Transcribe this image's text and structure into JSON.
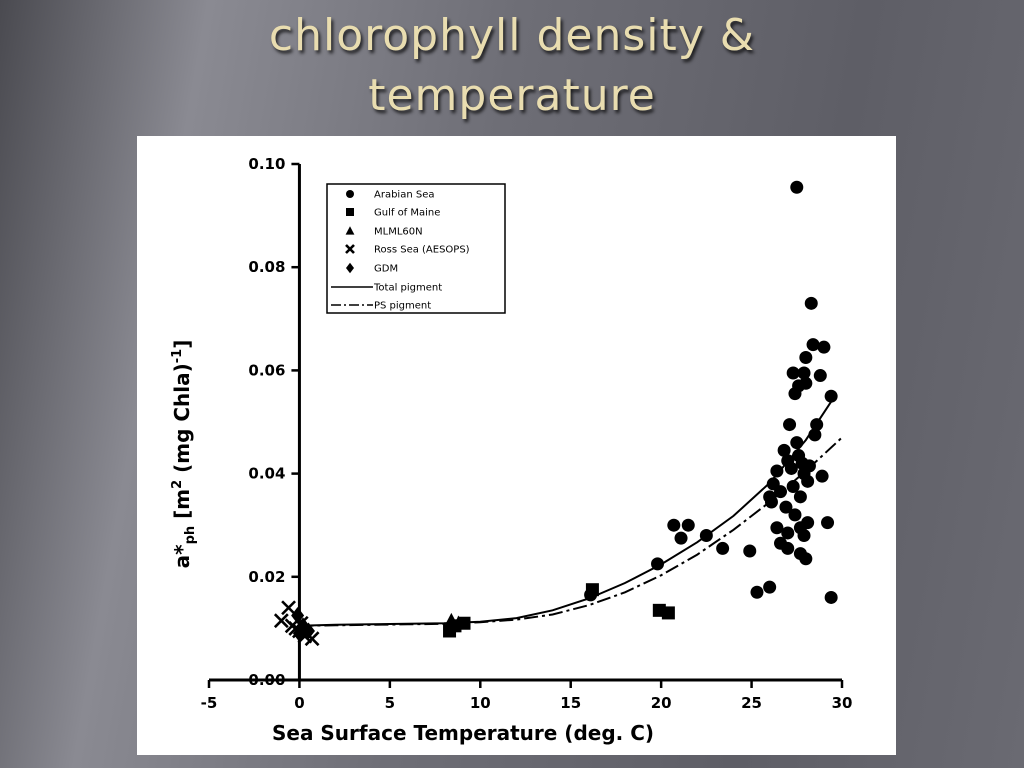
{
  "slide": {
    "title_line1": "chlorophyll density &",
    "title_line2": "temperature"
  },
  "chart_data": {
    "type": "scatter",
    "title": "",
    "xlabel": "Sea Surface Temperature (deg. C)",
    "ylabel": "a*ph [m2 (mg Chla)-1]",
    "ylabel_parts": {
      "a": "a*",
      "ph": "ph",
      "b": " [m",
      "sup2": "2",
      "c": " (mg Chla)",
      "supm1": "-1",
      "d": "]"
    },
    "xlim": [
      -5,
      30
    ],
    "ylim": [
      0.0,
      0.1
    ],
    "xticks": [
      -5,
      0,
      5,
      10,
      15,
      20,
      25,
      30
    ],
    "xtick_labels": [
      "-5",
      "0",
      "5",
      "10",
      "15",
      "20",
      "25",
      "30"
    ],
    "yticks": [
      0.0,
      0.02,
      0.04,
      0.06,
      0.08,
      0.1
    ],
    "ytick_labels": [
      "0.00",
      "0.02",
      "0.04",
      "0.06",
      "0.08",
      "0.10"
    ],
    "grid": false,
    "legend_position": "top-left",
    "series": [
      {
        "name": "Arabian Sea",
        "marker": "circle",
        "points": [
          [
            27.5,
            0.0955
          ],
          [
            28.3,
            0.073
          ],
          [
            28.4,
            0.065
          ],
          [
            28.0,
            0.0625
          ],
          [
            29.0,
            0.0645
          ],
          [
            27.3,
            0.0595
          ],
          [
            27.9,
            0.0595
          ],
          [
            28.8,
            0.059
          ],
          [
            27.6,
            0.057
          ],
          [
            28.0,
            0.0575
          ],
          [
            27.4,
            0.0555
          ],
          [
            29.4,
            0.055
          ],
          [
            28.6,
            0.0495
          ],
          [
            27.1,
            0.0495
          ],
          [
            28.5,
            0.0475
          ],
          [
            27.5,
            0.046
          ],
          [
            26.8,
            0.0445
          ],
          [
            27.6,
            0.0435
          ],
          [
            27.0,
            0.0425
          ],
          [
            27.8,
            0.042
          ],
          [
            28.2,
            0.0415
          ],
          [
            27.2,
            0.041
          ],
          [
            26.4,
            0.0405
          ],
          [
            27.9,
            0.04
          ],
          [
            28.9,
            0.0395
          ],
          [
            26.2,
            0.038
          ],
          [
            27.3,
            0.0375
          ],
          [
            28.1,
            0.0385
          ],
          [
            26.6,
            0.0365
          ],
          [
            27.7,
            0.0355
          ],
          [
            26.0,
            0.0355
          ],
          [
            26.1,
            0.0345
          ],
          [
            26.9,
            0.0335
          ],
          [
            27.4,
            0.032
          ],
          [
            28.1,
            0.0305
          ],
          [
            27.7,
            0.0295
          ],
          [
            29.2,
            0.0305
          ],
          [
            26.4,
            0.0295
          ],
          [
            27.0,
            0.0285
          ],
          [
            27.9,
            0.028
          ],
          [
            26.6,
            0.0265
          ],
          [
            27.0,
            0.0255
          ],
          [
            27.7,
            0.0245
          ],
          [
            28.0,
            0.0235
          ],
          [
            25.3,
            0.017
          ],
          [
            26.0,
            0.018
          ],
          [
            29.4,
            0.016
          ],
          [
            22.5,
            0.028
          ],
          [
            21.1,
            0.0275
          ],
          [
            20.7,
            0.03
          ],
          [
            21.5,
            0.03
          ],
          [
            23.4,
            0.0255
          ],
          [
            24.9,
            0.025
          ],
          [
            19.8,
            0.0225
          ],
          [
            16.1,
            0.0165
          ]
        ]
      },
      {
        "name": "Gulf of Maine",
        "marker": "square",
        "points": [
          [
            19.9,
            0.0135
          ],
          [
            20.4,
            0.013
          ],
          [
            16.2,
            0.0175
          ],
          [
            8.6,
            0.0105
          ],
          [
            9.1,
            0.011
          ],
          [
            8.3,
            0.0095
          ]
        ]
      },
      {
        "name": "MLML60N",
        "marker": "triangle",
        "points": [
          [
            8.4,
            0.0115
          ],
          [
            8.8,
            0.011
          ]
        ]
      },
      {
        "name": "Ross Sea (AESOPS)",
        "marker": "x",
        "points": [
          [
            -0.6,
            0.014
          ],
          [
            -1.0,
            0.0115
          ],
          [
            -0.4,
            0.0105
          ],
          [
            0.0,
            0.0095
          ],
          [
            0.3,
            0.0085
          ],
          [
            0.7,
            0.008
          ],
          [
            -0.2,
            0.01
          ],
          [
            0.1,
            0.011
          ]
        ]
      },
      {
        "name": "GDM",
        "marker": "diamond",
        "points": [
          [
            -0.1,
            0.0125
          ],
          [
            0.2,
            0.0105
          ],
          [
            0.5,
            0.0095
          ],
          [
            0.0,
            0.009
          ]
        ]
      }
    ],
    "curves": [
      {
        "name": "Total pigment",
        "style": "solid",
        "x": [
          0,
          2,
          4,
          6,
          8,
          10,
          12,
          14,
          16,
          18,
          20,
          22,
          24,
          26,
          28,
          29.5
        ],
        "y": [
          0.0105,
          0.0107,
          0.0108,
          0.0109,
          0.011,
          0.0113,
          0.012,
          0.0135,
          0.0158,
          0.0188,
          0.0224,
          0.0267,
          0.0318,
          0.0382,
          0.0465,
          0.0545
        ]
      },
      {
        "name": "PS pigment",
        "style": "dashed",
        "x": [
          0,
          2,
          4,
          6,
          8,
          10,
          12,
          14,
          16,
          18,
          20,
          22,
          24,
          26,
          28,
          30
        ],
        "y": [
          0.0105,
          0.0106,
          0.0107,
          0.0108,
          0.0109,
          0.0112,
          0.0117,
          0.0127,
          0.0145,
          0.017,
          0.0203,
          0.0243,
          0.0291,
          0.0345,
          0.0405,
          0.047
        ]
      }
    ]
  }
}
